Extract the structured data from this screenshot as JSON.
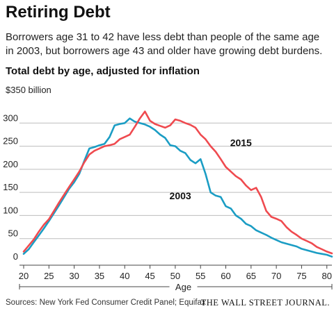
{
  "header": {
    "title": "Retiring Debt",
    "subtitle": "Borrowers age 31 to 42 have less debt than people of the same age in 2003, but borrowers age 43 and older have growing debt burdens.",
    "chart_heading": "Total debt by age, adjusted for inflation"
  },
  "footer": {
    "source": "Sources: New York Fed Consumer Credit Panel; Equifax",
    "brand": "THE WALL STREET JOURNAL."
  },
  "colors": {
    "series_2003": "#1b9dc4",
    "series_2015": "#ef4a4f",
    "grid": "#bdbdbd",
    "text": "#222222"
  },
  "chart_data": {
    "type": "line",
    "title": "Total debt by age, adjusted for inflation",
    "unit_label": "$350 billion",
    "xlabel": "Age",
    "ylabel": "",
    "xlim": [
      20,
      81
    ],
    "ylim": [
      0,
      350
    ],
    "x_ticks": [
      20,
      25,
      30,
      35,
      40,
      45,
      50,
      55,
      60,
      65,
      70,
      75,
      80
    ],
    "y_ticks": [
      0,
      50,
      100,
      150,
      200,
      250,
      300
    ],
    "grid": true,
    "series": [
      {
        "name": "2003",
        "color": "#1b9dc4",
        "label_at": [
          51,
          135
        ],
        "x": [
          20,
          21,
          22,
          23,
          24,
          25,
          26,
          27,
          28,
          29,
          30,
          31,
          32,
          33,
          34,
          35,
          36,
          37,
          38,
          39,
          40,
          41,
          42,
          43,
          44,
          45,
          46,
          47,
          48,
          49,
          50,
          51,
          52,
          53,
          54,
          55,
          56,
          57,
          58,
          59,
          60,
          61,
          62,
          63,
          64,
          65,
          66,
          67,
          68,
          69,
          70,
          71,
          72,
          73,
          74,
          75,
          76,
          77,
          78,
          79,
          80,
          81
        ],
        "values": [
          17,
          27,
          42,
          57,
          72,
          88,
          105,
          122,
          140,
          158,
          172,
          190,
          218,
          245,
          248,
          252,
          255,
          270,
          295,
          298,
          300,
          310,
          303,
          300,
          297,
          292,
          285,
          275,
          268,
          252,
          250,
          240,
          235,
          220,
          213,
          222,
          190,
          150,
          143,
          140,
          120,
          115,
          100,
          93,
          82,
          77,
          68,
          63,
          58,
          52,
          47,
          42,
          39,
          36,
          33,
          28,
          25,
          22,
          19,
          17,
          15,
          11
        ]
      },
      {
        "name": "2015",
        "color": "#ef4a4f",
        "label_at": [
          63,
          250
        ],
        "x": [
          20,
          21,
          22,
          23,
          24,
          25,
          26,
          27,
          28,
          29,
          30,
          31,
          32,
          33,
          34,
          35,
          36,
          37,
          38,
          39,
          40,
          41,
          42,
          43,
          44,
          45,
          46,
          47,
          48,
          49,
          50,
          51,
          52,
          53,
          54,
          55,
          56,
          57,
          58,
          59,
          60,
          61,
          62,
          63,
          64,
          65,
          66,
          67,
          68,
          69,
          70,
          71,
          72,
          73,
          74,
          75,
          76,
          77,
          78,
          79,
          80,
          81
        ],
        "values": [
          22,
          35,
          48,
          65,
          80,
          92,
          110,
          128,
          145,
          162,
          178,
          195,
          215,
          232,
          240,
          245,
          250,
          252,
          255,
          265,
          270,
          275,
          292,
          310,
          325,
          305,
          298,
          294,
          290,
          295,
          308,
          305,
          300,
          296,
          290,
          275,
          265,
          250,
          238,
          222,
          205,
          195,
          185,
          178,
          165,
          155,
          160,
          140,
          110,
          97,
          93,
          88,
          75,
          65,
          58,
          50,
          45,
          40,
          32,
          27,
          22,
          18
        ]
      }
    ]
  }
}
